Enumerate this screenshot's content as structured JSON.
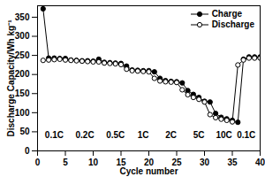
{
  "chart_data": {
    "type": "line",
    "xlabel": "Cycle number",
    "ylabel": "Discharge Capacity/Wh kg⁻¹",
    "x": [
      1,
      2,
      3,
      4,
      5,
      6,
      7,
      8,
      9,
      10,
      11,
      12,
      13,
      14,
      15,
      16,
      17,
      18,
      19,
      20,
      21,
      22,
      23,
      24,
      25,
      26,
      27,
      28,
      29,
      30,
      31,
      32,
      33,
      34,
      35,
      36,
      37,
      38,
      39,
      40
    ],
    "series": [
      {
        "name": "Charge",
        "color": "#000000",
        "marker": "filled_circle",
        "values": [
          372,
          243,
          243,
          242,
          242,
          238,
          237,
          236,
          236,
          235,
          240,
          232,
          231,
          230,
          229,
          222,
          212,
          211,
          210,
          210,
          207,
          190,
          184,
          182,
          181,
          178,
          158,
          148,
          140,
          130,
          128,
          98,
          88,
          84,
          80,
          75,
          240,
          246,
          246,
          246
        ]
      },
      {
        "name": "Discharge",
        "color": "#000000",
        "marker": "open_circle",
        "values": [
          237,
          238,
          239,
          240,
          238,
          237,
          236,
          235,
          234,
          233,
          233,
          230,
          229,
          228,
          226,
          214,
          210,
          209,
          208,
          207,
          190,
          183,
          181,
          180,
          179,
          160,
          147,
          140,
          135,
          128,
          95,
          87,
          83,
          80,
          76,
          225,
          238,
          243,
          243,
          243
        ]
      }
    ],
    "xlim": [
      0,
      40
    ],
    "xticks": [
      0,
      5,
      10,
      15,
      20,
      25,
      30,
      35,
      40
    ],
    "ylim": [
      0,
      380
    ],
    "yticks": [
      0,
      50,
      100,
      150,
      200,
      250,
      300,
      350
    ],
    "legend": "top-right",
    "annotations": [
      {
        "text": "0.1C",
        "x": 3,
        "y": 40
      },
      {
        "text": "0.2C",
        "x": 8.5,
        "y": 40
      },
      {
        "text": "0.5C",
        "x": 14,
        "y": 40
      },
      {
        "text": "1C",
        "x": 19,
        "y": 40
      },
      {
        "text": "2C",
        "x": 24,
        "y": 40
      },
      {
        "text": "5C",
        "x": 29,
        "y": 40
      },
      {
        "text": "10C",
        "x": 33.5,
        "y": 40
      },
      {
        "text": "0.1C",
        "x": 37.5,
        "y": 40
      }
    ]
  }
}
